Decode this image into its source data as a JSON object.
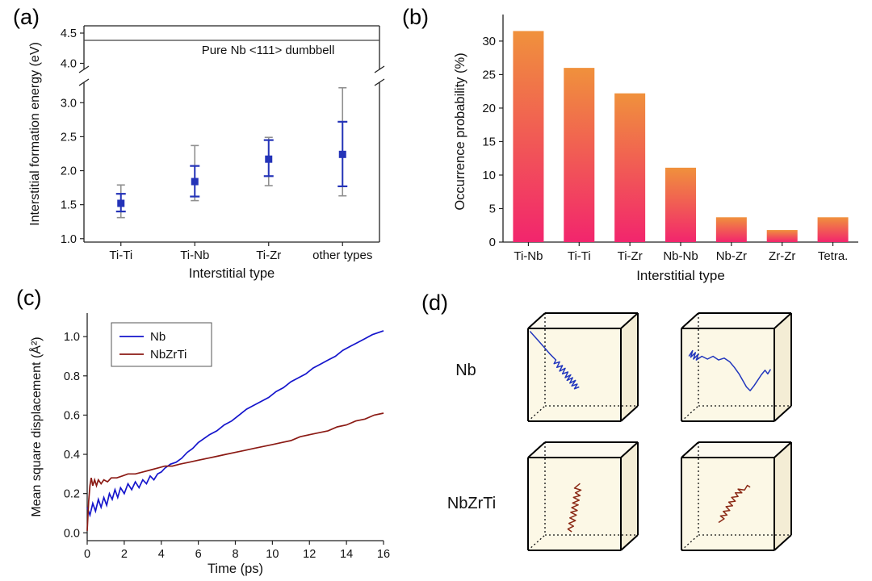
{
  "panels": {
    "a": {
      "label": "(a)"
    },
    "b": {
      "label": "(b)"
    },
    "c": {
      "label": "(c)"
    },
    "d": {
      "label": "(d)"
    }
  },
  "chart_data": [
    {
      "id": "formation-energy",
      "type": "scatter",
      "xlabel": "Interstitial type",
      "ylabel": "Interstitial formation energy (eV)",
      "categories": [
        "Ti-Ti",
        "Ti-Nb",
        "Ti-Zr",
        "other types"
      ],
      "means": [
        1.52,
        1.84,
        2.17,
        2.24
      ],
      "inner_err": [
        [
          1.4,
          1.66
        ],
        [
          1.62,
          2.07
        ],
        [
          1.92,
          2.45
        ],
        [
          1.77,
          2.72
        ]
      ],
      "outer_err": [
        [
          1.31,
          1.79
        ],
        [
          1.56,
          2.37
        ],
        [
          1.78,
          2.49
        ],
        [
          1.63,
          3.22
        ]
      ],
      "reference_line": {
        "value": 4.38,
        "label": "Pure Nb <111> dumbbell"
      },
      "y_break": true,
      "ylim_lower": [
        0.95,
        3.3
      ],
      "ylim_upper": [
        3.9,
        4.62
      ],
      "yticks_lower": [
        1.0,
        1.5,
        2.0,
        2.5,
        3.0
      ],
      "yticks_upper": [
        4.0,
        4.5
      ],
      "marker_color": "#2433b8",
      "outer_color": "#8f8f8f"
    },
    {
      "id": "occurrence-probability",
      "type": "bar",
      "categories": [
        "Ti-Nb",
        "Ti-Ti",
        "Ti-Zr",
        "Nb-Nb",
        "Nb-Zr",
        "Zr-Zr",
        "Tetra."
      ],
      "values": [
        31.5,
        26.0,
        22.2,
        11.1,
        3.7,
        1.8,
        3.7
      ],
      "xlabel": "Interstitial type",
      "ylabel": "Occurrence probability (%)",
      "ylim": [
        0,
        33
      ],
      "yticks": [
        0,
        5,
        10,
        15,
        20,
        25,
        30
      ],
      "gradient_top": "#f0913c",
      "gradient_bottom": "#f2256d"
    },
    {
      "id": "mean-square-displacement",
      "type": "line",
      "xlabel": "Time (ps)",
      "ylabel": "Mean square displacement (Å²)",
      "xlim": [
        0,
        16
      ],
      "ylim": [
        -0.04,
        1.12
      ],
      "xticks": [
        0,
        2,
        4,
        6,
        8,
        10,
        12,
        14,
        16
      ],
      "yticks": [
        0.0,
        0.2,
        0.4,
        0.6,
        0.8,
        1.0
      ],
      "legend_position": "top-left",
      "series": [
        {
          "name": "Nb",
          "color": "#1515cc",
          "points": [
            [
              0,
              0.13
            ],
            [
              0.15,
              0.09
            ],
            [
              0.3,
              0.15
            ],
            [
              0.45,
              0.11
            ],
            [
              0.6,
              0.17
            ],
            [
              0.75,
              0.13
            ],
            [
              0.9,
              0.18
            ],
            [
              1.05,
              0.14
            ],
            [
              1.2,
              0.2
            ],
            [
              1.35,
              0.17
            ],
            [
              1.5,
              0.22
            ],
            [
              1.65,
              0.18
            ],
            [
              1.8,
              0.23
            ],
            [
              2.0,
              0.2
            ],
            [
              2.2,
              0.25
            ],
            [
              2.4,
              0.22
            ],
            [
              2.6,
              0.26
            ],
            [
              2.8,
              0.23
            ],
            [
              3.0,
              0.27
            ],
            [
              3.2,
              0.25
            ],
            [
              3.4,
              0.29
            ],
            [
              3.6,
              0.27
            ],
            [
              3.8,
              0.3
            ],
            [
              4.0,
              0.31
            ],
            [
              4.2,
              0.33
            ],
            [
              4.5,
              0.35
            ],
            [
              4.8,
              0.36
            ],
            [
              5.1,
              0.38
            ],
            [
              5.4,
              0.41
            ],
            [
              5.7,
              0.43
            ],
            [
              6.0,
              0.46
            ],
            [
              6.3,
              0.48
            ],
            [
              6.6,
              0.5
            ],
            [
              7.0,
              0.52
            ],
            [
              7.4,
              0.55
            ],
            [
              7.8,
              0.57
            ],
            [
              8.2,
              0.6
            ],
            [
              8.6,
              0.63
            ],
            [
              9.0,
              0.65
            ],
            [
              9.4,
              0.67
            ],
            [
              9.8,
              0.69
            ],
            [
              10.2,
              0.72
            ],
            [
              10.6,
              0.74
            ],
            [
              11.0,
              0.77
            ],
            [
              11.4,
              0.79
            ],
            [
              11.8,
              0.81
            ],
            [
              12.2,
              0.84
            ],
            [
              12.6,
              0.86
            ],
            [
              13.0,
              0.88
            ],
            [
              13.4,
              0.9
            ],
            [
              13.8,
              0.93
            ],
            [
              14.2,
              0.95
            ],
            [
              14.6,
              0.97
            ],
            [
              15.0,
              0.99
            ],
            [
              15.4,
              1.01
            ],
            [
              15.7,
              1.02
            ],
            [
              16,
              1.03
            ]
          ]
        },
        {
          "name": "NbZrTi",
          "color": "#8b1a14",
          "points": [
            [
              0,
              0.01
            ],
            [
              0.08,
              0.16
            ],
            [
              0.15,
              0.24
            ],
            [
              0.22,
              0.28
            ],
            [
              0.3,
              0.24
            ],
            [
              0.4,
              0.27
            ],
            [
              0.5,
              0.24
            ],
            [
              0.6,
              0.27
            ],
            [
              0.75,
              0.25
            ],
            [
              0.9,
              0.27
            ],
            [
              1.1,
              0.26
            ],
            [
              1.3,
              0.28
            ],
            [
              1.6,
              0.28
            ],
            [
              1.9,
              0.29
            ],
            [
              2.2,
              0.3
            ],
            [
              2.6,
              0.3
            ],
            [
              3.0,
              0.31
            ],
            [
              3.4,
              0.32
            ],
            [
              3.8,
              0.33
            ],
            [
              4.2,
              0.34
            ],
            [
              4.6,
              0.34
            ],
            [
              5.0,
              0.35
            ],
            [
              5.5,
              0.36
            ],
            [
              6.0,
              0.37
            ],
            [
              6.5,
              0.38
            ],
            [
              7.0,
              0.39
            ],
            [
              7.5,
              0.4
            ],
            [
              8.0,
              0.41
            ],
            [
              8.5,
              0.42
            ],
            [
              9.0,
              0.43
            ],
            [
              9.5,
              0.44
            ],
            [
              10.0,
              0.45
            ],
            [
              10.5,
              0.46
            ],
            [
              11.0,
              0.47
            ],
            [
              11.5,
              0.49
            ],
            [
              12.0,
              0.5
            ],
            [
              12.5,
              0.51
            ],
            [
              13.0,
              0.52
            ],
            [
              13.5,
              0.54
            ],
            [
              14.0,
              0.55
            ],
            [
              14.5,
              0.57
            ],
            [
              15.0,
              0.58
            ],
            [
              15.5,
              0.6
            ],
            [
              16,
              0.61
            ]
          ]
        }
      ]
    },
    {
      "id": "interstitial-trajectories",
      "type": "trajectory-boxes",
      "box_fill": "#fcf8e6",
      "rows": [
        {
          "label": "Nb",
          "color": "#2136bd",
          "boxes": [
            {
              "points": [
                [
                  0.02,
                  0.03
                ],
                [
                  0.1,
                  0.12
                ],
                [
                  0.17,
                  0.2
                ],
                [
                  0.24,
                  0.28
                ],
                [
                  0.3,
                  0.34
                ],
                [
                  0.28,
                  0.38
                ],
                [
                  0.34,
                  0.36
                ],
                [
                  0.31,
                  0.42
                ],
                [
                  0.37,
                  0.4
                ],
                [
                  0.34,
                  0.46
                ],
                [
                  0.4,
                  0.43
                ],
                [
                  0.37,
                  0.49
                ],
                [
                  0.43,
                  0.47
                ],
                [
                  0.4,
                  0.53
                ],
                [
                  0.46,
                  0.5
                ],
                [
                  0.42,
                  0.56
                ],
                [
                  0.48,
                  0.53
                ],
                [
                  0.45,
                  0.59
                ],
                [
                  0.51,
                  0.56
                ],
                [
                  0.47,
                  0.62
                ],
                [
                  0.53,
                  0.6
                ],
                [
                  0.5,
                  0.65
                ],
                [
                  0.55,
                  0.63
                ]
              ]
            },
            {
              "points": [
                [
                  0.08,
                  0.3
                ],
                [
                  0.12,
                  0.24
                ],
                [
                  0.1,
                  0.31
                ],
                [
                  0.15,
                  0.26
                ],
                [
                  0.13,
                  0.33
                ],
                [
                  0.18,
                  0.28
                ],
                [
                  0.16,
                  0.34
                ],
                [
                  0.22,
                  0.3
                ],
                [
                  0.28,
                  0.33
                ],
                [
                  0.34,
                  0.3
                ],
                [
                  0.4,
                  0.34
                ],
                [
                  0.46,
                  0.32
                ],
                [
                  0.52,
                  0.36
                ],
                [
                  0.57,
                  0.42
                ],
                [
                  0.62,
                  0.49
                ],
                [
                  0.66,
                  0.56
                ],
                [
                  0.7,
                  0.63
                ],
                [
                  0.74,
                  0.67
                ],
                [
                  0.78,
                  0.62
                ],
                [
                  0.82,
                  0.56
                ],
                [
                  0.86,
                  0.5
                ],
                [
                  0.9,
                  0.45
                ],
                [
                  0.93,
                  0.49
                ],
                [
                  0.96,
                  0.44
                ]
              ]
            }
          ]
        },
        {
          "label": "NbZrTi",
          "color": "#8b2a16",
          "boxes": [
            {
              "points": [
                [
                  0.56,
                  0.28
                ],
                [
                  0.5,
                  0.33
                ],
                [
                  0.57,
                  0.35
                ],
                [
                  0.51,
                  0.38
                ],
                [
                  0.56,
                  0.41
                ],
                [
                  0.49,
                  0.43
                ],
                [
                  0.55,
                  0.46
                ],
                [
                  0.48,
                  0.49
                ],
                [
                  0.54,
                  0.51
                ],
                [
                  0.47,
                  0.54
                ],
                [
                  0.53,
                  0.57
                ],
                [
                  0.46,
                  0.59
                ],
                [
                  0.52,
                  0.62
                ],
                [
                  0.45,
                  0.65
                ],
                [
                  0.51,
                  0.68
                ],
                [
                  0.44,
                  0.71
                ],
                [
                  0.49,
                  0.74
                ],
                [
                  0.43,
                  0.77
                ],
                [
                  0.47,
                  0.8
                ]
              ]
            },
            {
              "points": [
                [
                  0.4,
                  0.7
                ],
                [
                  0.46,
                  0.66
                ],
                [
                  0.42,
                  0.63
                ],
                [
                  0.49,
                  0.62
                ],
                [
                  0.45,
                  0.58
                ],
                [
                  0.52,
                  0.57
                ],
                [
                  0.48,
                  0.53
                ],
                [
                  0.55,
                  0.52
                ],
                [
                  0.51,
                  0.48
                ],
                [
                  0.58,
                  0.47
                ],
                [
                  0.54,
                  0.43
                ],
                [
                  0.61,
                  0.42
                ],
                [
                  0.58,
                  0.38
                ],
                [
                  0.65,
                  0.38
                ],
                [
                  0.61,
                  0.34
                ],
                [
                  0.68,
                  0.35
                ],
                [
                  0.71,
                  0.3
                ],
                [
                  0.74,
                  0.32
                ]
              ]
            }
          ]
        }
      ]
    }
  ]
}
